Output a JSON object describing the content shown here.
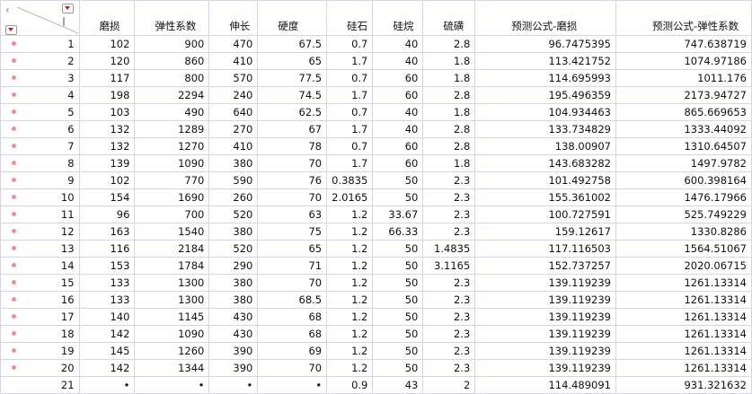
{
  "columns": [
    "磨损",
    "弹性系数",
    "伸长",
    "硬度",
    "硅石",
    "硅烷",
    "硫磺",
    "预测公式-磨损",
    "预测公式-弹性系数"
  ],
  "rows": [
    [
      "1",
      "102",
      "900",
      "470",
      "67.5",
      "0.7",
      "40",
      "2.8",
      "96.7475395",
      "747.638719"
    ],
    [
      "2",
      "120",
      "860",
      "410",
      "65",
      "1.7",
      "40",
      "1.8",
      "113.421752",
      "1074.97186"
    ],
    [
      "3",
      "117",
      "800",
      "570",
      "77.5",
      "0.7",
      "60",
      "1.8",
      "114.695993",
      "1011.176"
    ],
    [
      "4",
      "198",
      "2294",
      "240",
      "74.5",
      "1.7",
      "60",
      "2.8",
      "195.496359",
      "2173.94727"
    ],
    [
      "5",
      "103",
      "490",
      "640",
      "62.5",
      "0.7",
      "40",
      "1.8",
      "104.934463",
      "865.669653"
    ],
    [
      "6",
      "132",
      "1289",
      "270",
      "67",
      "1.7",
      "40",
      "2.8",
      "133.734829",
      "1333.44092"
    ],
    [
      "7",
      "132",
      "1270",
      "410",
      "78",
      "0.7",
      "60",
      "2.8",
      "138.00907",
      "1310.64507"
    ],
    [
      "8",
      "139",
      "1090",
      "380",
      "70",
      "1.7",
      "60",
      "1.8",
      "143.683282",
      "1497.9782"
    ],
    [
      "9",
      "102",
      "770",
      "590",
      "76",
      "0.3835",
      "50",
      "2.3",
      "101.492758",
      "600.398164"
    ],
    [
      "10",
      "154",
      "1690",
      "260",
      "70",
      "2.0165",
      "50",
      "2.3",
      "155.361002",
      "1476.17966"
    ],
    [
      "11",
      "96",
      "700",
      "520",
      "63",
      "1.2",
      "33.67",
      "2.3",
      "100.727591",
      "525.749229"
    ],
    [
      "12",
      "163",
      "1540",
      "380",
      "75",
      "1.2",
      "66.33",
      "2.3",
      "159.12617",
      "1330.8286"
    ],
    [
      "13",
      "116",
      "2184",
      "520",
      "65",
      "1.2",
      "50",
      "1.4835",
      "117.116503",
      "1564.51067"
    ],
    [
      "14",
      "153",
      "1784",
      "290",
      "71",
      "1.2",
      "50",
      "3.1165",
      "152.737257",
      "2020.06715"
    ],
    [
      "15",
      "133",
      "1300",
      "380",
      "70",
      "1.2",
      "50",
      "2.3",
      "139.119239",
      "1261.13314"
    ],
    [
      "16",
      "133",
      "1300",
      "380",
      "68.5",
      "1.2",
      "50",
      "2.3",
      "139.119239",
      "1261.13314"
    ],
    [
      "17",
      "140",
      "1145",
      "430",
      "68",
      "1.2",
      "50",
      "2.3",
      "139.119239",
      "1261.13314"
    ],
    [
      "18",
      "142",
      "1090",
      "430",
      "68",
      "1.2",
      "50",
      "2.3",
      "139.119239",
      "1261.13314"
    ],
    [
      "19",
      "145",
      "1260",
      "390",
      "69",
      "1.2",
      "50",
      "2.3",
      "139.119239",
      "1261.13314"
    ],
    [
      "20",
      "142",
      "1344",
      "390",
      "70",
      "1.2",
      "50",
      "2.3",
      "139.119239",
      "1261.13314"
    ],
    [
      "21",
      "•",
      "•",
      "•",
      "•",
      "0.9",
      "43",
      "2",
      "114.489091",
      "931.321632"
    ]
  ],
  "marked_rows": 20,
  "colors": {
    "marker": "#f28aa0",
    "menu_triangle": "#c8102e",
    "grid": "#d6d6e2"
  }
}
